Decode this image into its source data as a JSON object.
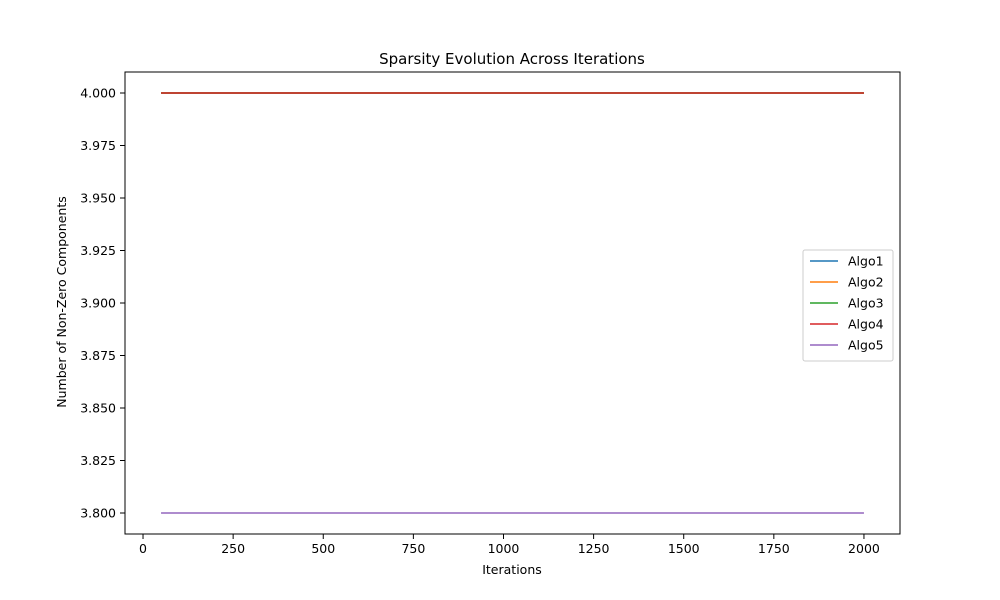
{
  "chart_data": {
    "type": "line",
    "title": "Sparsity Evolution Across Iterations",
    "xlabel": "Iterations",
    "ylabel": "Number of Non-Zero Components",
    "xlim": [
      -50,
      2100
    ],
    "ylim": [
      3.79,
      4.01
    ],
    "xticks": [
      0,
      250,
      500,
      750,
      1000,
      1250,
      1500,
      1750,
      2000
    ],
    "xtick_labels": [
      "0",
      "250",
      "500",
      "750",
      "1000",
      "1250",
      "1500",
      "1750",
      "2000"
    ],
    "yticks": [
      3.8,
      3.825,
      3.85,
      3.875,
      3.9,
      3.925,
      3.95,
      3.975,
      4.0
    ],
    "ytick_labels": [
      "3.800",
      "3.825",
      "3.850",
      "3.875",
      "3.900",
      "3.925",
      "3.950",
      "3.975",
      "4.000"
    ],
    "grid": false,
    "legend_position": "center-right",
    "series": [
      {
        "name": "Algo1",
        "color": "#1f77b4",
        "x": [
          50,
          2000
        ],
        "y": [
          4.0,
          4.0
        ]
      },
      {
        "name": "Algo2",
        "color": "#ff7f0e",
        "x": [
          50,
          2000
        ],
        "y": [
          4.0,
          4.0
        ]
      },
      {
        "name": "Algo3",
        "color": "#2ca02c",
        "x": [
          50,
          2000
        ],
        "y": [
          4.0,
          4.0
        ]
      },
      {
        "name": "Algo4",
        "color": "#d62728",
        "x": [
          50,
          2000
        ],
        "y": [
          4.0,
          4.0
        ]
      },
      {
        "name": "Algo5",
        "color": "#9467bd",
        "x": [
          50,
          2000
        ],
        "y": [
          3.8,
          3.8
        ]
      }
    ]
  }
}
